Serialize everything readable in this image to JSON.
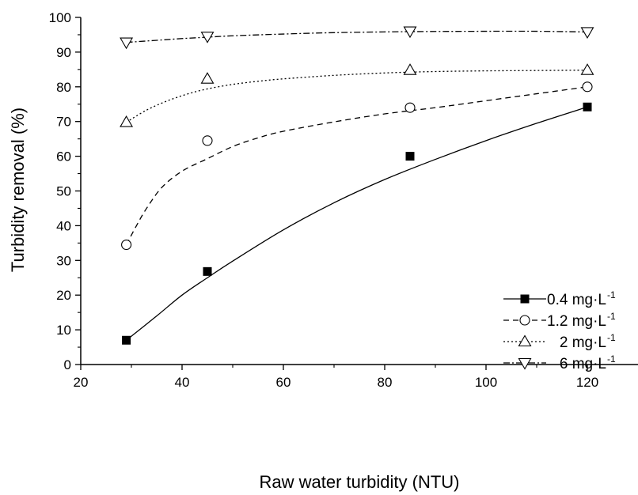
{
  "chart_data": {
    "type": "scatter",
    "title": "",
    "xlabel": "Raw water turbidity (NTU)",
    "ylabel": "Turbidity removal (%)",
    "xlim": [
      20,
      130
    ],
    "ylim": [
      0,
      100
    ],
    "xticks": [
      20,
      40,
      60,
      80,
      100,
      120
    ],
    "yticks": [
      0,
      10,
      20,
      30,
      40,
      50,
      60,
      70,
      80,
      90,
      100
    ],
    "grid": false,
    "legend_position": "bottom-right",
    "series": [
      {
        "name": "0.4 mg·L",
        "name_sup": "-1",
        "marker": "filled-square",
        "line": "solid",
        "x": [
          29,
          45,
          85,
          120
        ],
        "y": [
          7,
          26.8,
          60,
          74.2
        ],
        "fit_x": [
          29,
          35,
          40,
          45,
          50,
          60,
          70,
          80,
          90,
          100,
          110,
          120
        ],
        "fit_y": [
          7,
          14,
          20,
          25,
          29.8,
          38.8,
          46.6,
          53.3,
          59.1,
          64.5,
          69.5,
          74.2
        ]
      },
      {
        "name": "1.2 mg·L",
        "name_sup": "-1",
        "marker": "open-circle",
        "line": "dashed",
        "x": [
          29,
          45,
          85,
          120
        ],
        "y": [
          34.5,
          64.5,
          74,
          80
        ],
        "fit_x": [
          29,
          31,
          33,
          36,
          40,
          45,
          50,
          55,
          60,
          70,
          80,
          90,
          100,
          110,
          120
        ],
        "fit_y": [
          34.5,
          40,
          45,
          51,
          55.7,
          59.3,
          62.8,
          65.3,
          67.2,
          69.9,
          72.2,
          74,
          76,
          78,
          80
        ]
      },
      {
        "name": "2 mg·L",
        "name_sup": "-1",
        "marker": "open-triangle-up",
        "line": "dotted",
        "x": [
          29,
          45,
          85,
          120
        ],
        "y": [
          69.8,
          82.3,
          84.8,
          84.8
        ],
        "fit_x": [
          29,
          33,
          37,
          41,
          45,
          50,
          55,
          60,
          70,
          80,
          90,
          100,
          110,
          120
        ],
        "fit_y": [
          69.8,
          73.3,
          75.9,
          77.9,
          79.4,
          80.7,
          81.6,
          82.3,
          83.3,
          84,
          84.4,
          84.6,
          84.7,
          84.8
        ]
      },
      {
        "name": "6 mg·L",
        "name_sup": "-1",
        "marker": "open-triangle-down",
        "line": "dash-dot",
        "x": [
          29,
          45,
          85,
          120
        ],
        "y": [
          92.8,
          94.5,
          96,
          95.8
        ],
        "fit_x": [
          29,
          35,
          40,
          45,
          50,
          60,
          70,
          85,
          100,
          110,
          120
        ],
        "fit_y": [
          92.8,
          93.4,
          93.9,
          94.3,
          94.7,
          95.2,
          95.6,
          95.9,
          96,
          96,
          95.8
        ]
      }
    ]
  }
}
